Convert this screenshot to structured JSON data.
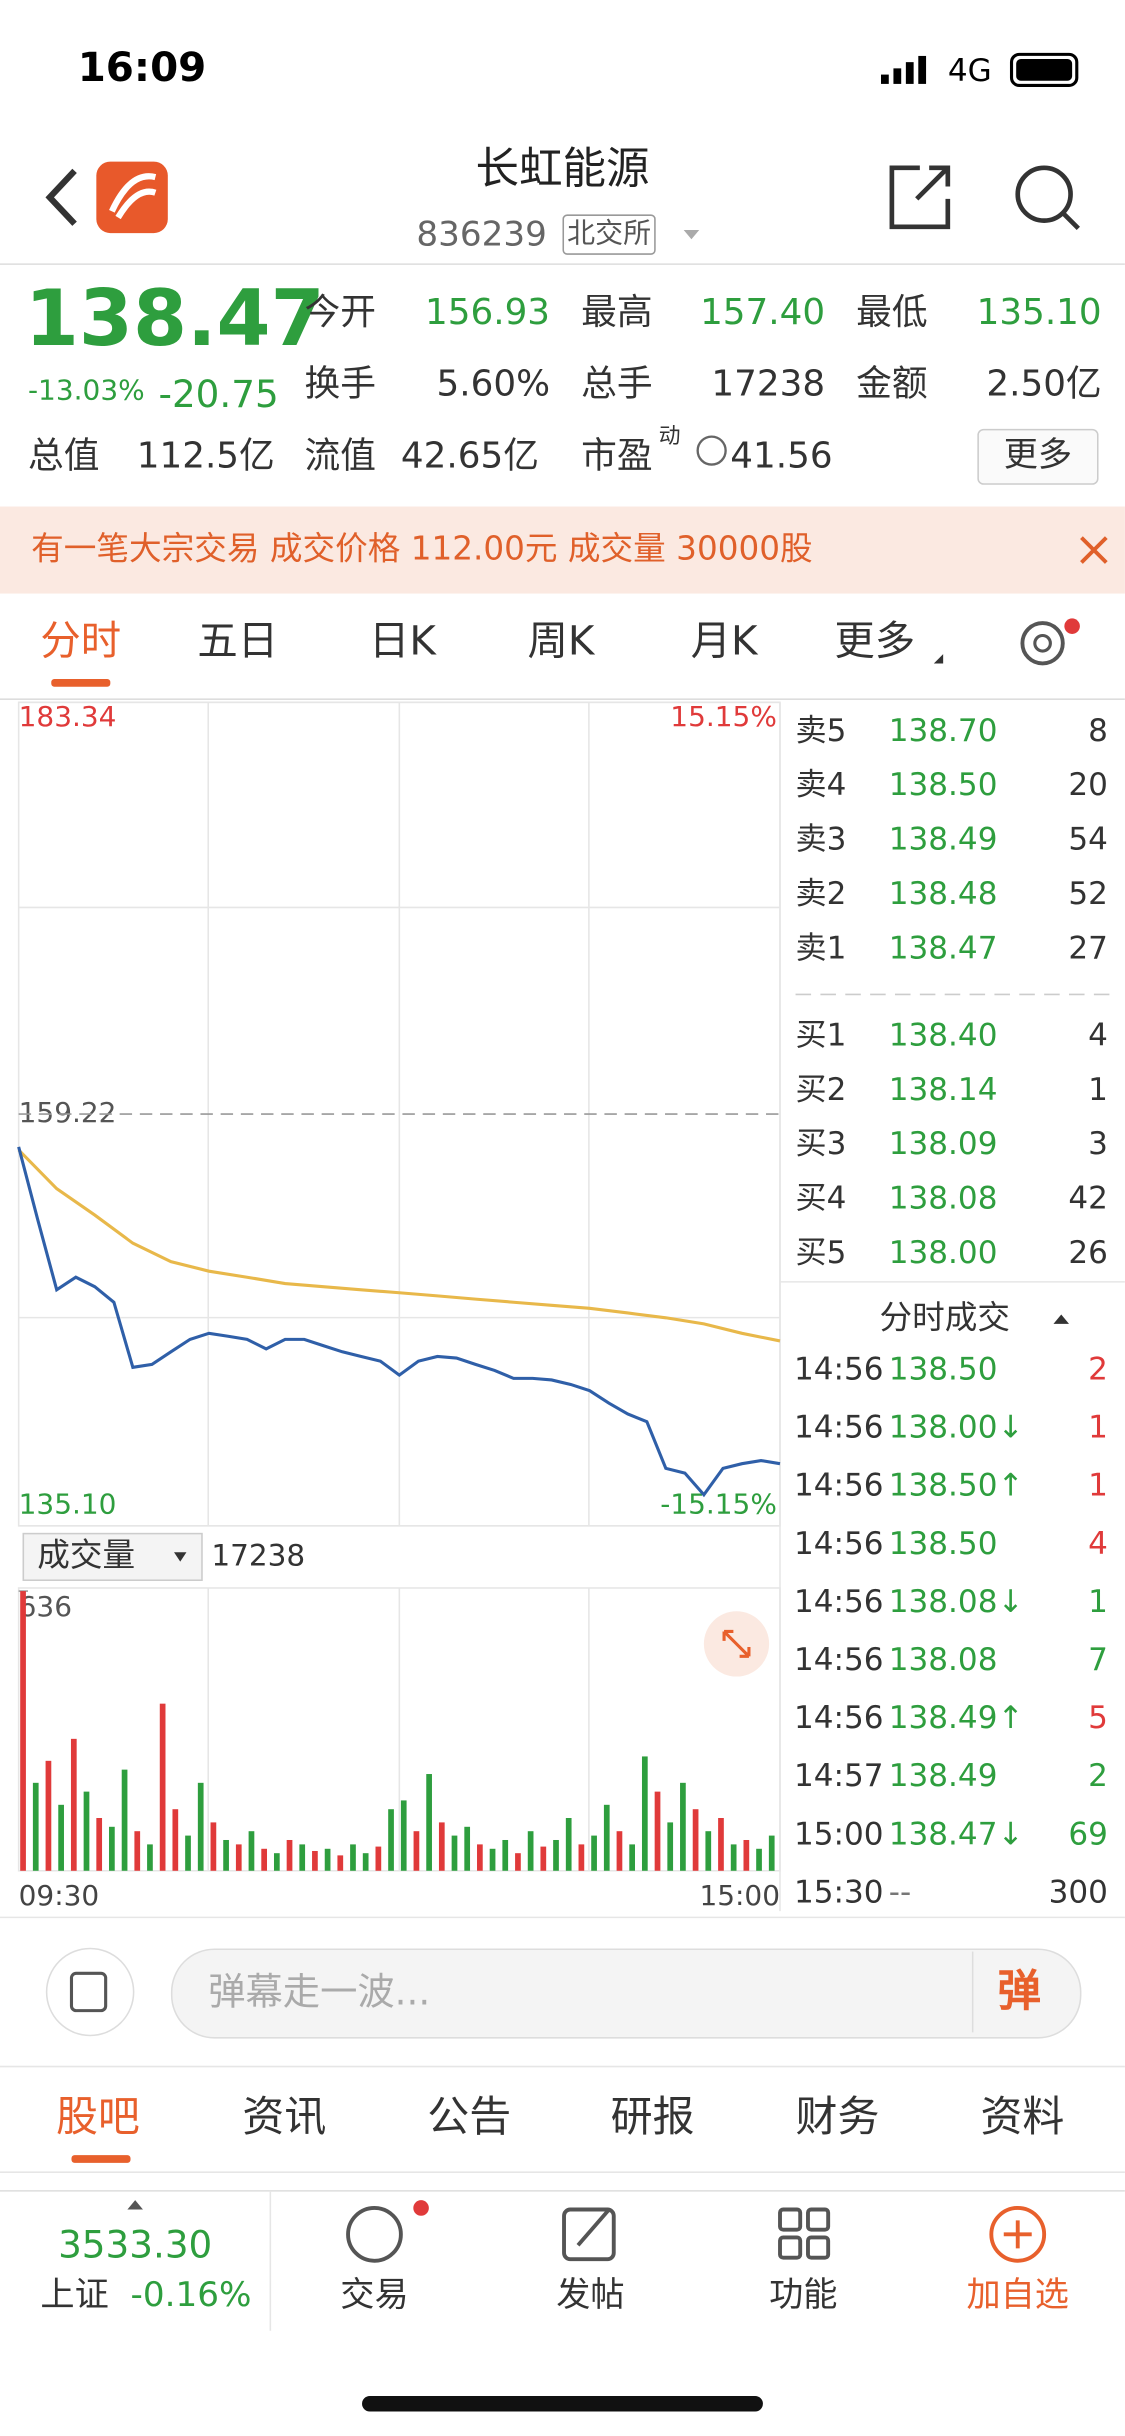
{
  "status": {
    "time": "16:09",
    "network": "4G"
  },
  "header": {
    "name": "长虹能源",
    "code": "836239",
    "exchange": "北交所"
  },
  "quote": {
    "price": "138.47",
    "change_pct": "-13.03%",
    "change": "-20.75",
    "stats": [
      {
        "label": "今开",
        "value": "156.93"
      },
      {
        "label": "最高",
        "value": "157.40"
      },
      {
        "label": "最低",
        "value": "135.10"
      },
      {
        "label": "换手",
        "value": "5.60%"
      },
      {
        "label": "总手",
        "value": "17238"
      },
      {
        "label": "金额",
        "value": "2.50亿"
      }
    ],
    "total_value": {
      "label": "总值",
      "value": "112.5亿"
    },
    "float_value": {
      "label": "流值",
      "value": "42.65亿"
    },
    "pe": {
      "label": "市盈",
      "tag": "动",
      "value": "41.56"
    },
    "more": "更多"
  },
  "banner": "有一笔大宗交易 成交价格 112.00元 成交量 30000股",
  "tabs": [
    "分时",
    "五日",
    "日K",
    "周K",
    "月K",
    "更多"
  ],
  "intraday": {
    "ylim": [
      135.1,
      183.34
    ],
    "yticks": [
      183.34,
      159.22,
      {
        "value": 135.1,
        "label": "135.10"
      }
    ],
    "pct_labels": [
      "15.15%",
      "-15.15%"
    ],
    "xticks": [
      "09:30",
      "15:00"
    ],
    "price": {
      "color": "#2f5fa8",
      "values": [
        157.3,
        153.03,
        148.93,
        149.66,
        149.11,
        148.2,
        144.38,
        144.56,
        145.29,
        146.02,
        146.38,
        146.2,
        146.02,
        145.47,
        146.02,
        146.02,
        145.66,
        145.29,
        145.02,
        144.75,
        143.93,
        144.75,
        145.02,
        144.93,
        144.56,
        144.2,
        143.74,
        143.74,
        143.65,
        143.38,
        143.02,
        142.29,
        141.65,
        141.2,
        138.47,
        138.19,
        136.92,
        138.47,
        138.74,
        138.92,
        138.74
      ]
    },
    "average": {
      "color": "#e8b84a",
      "values": [
        157.12,
        154.85,
        153.3,
        151.66,
        150.57,
        150.02,
        149.66,
        149.29,
        149.11,
        148.93,
        148.75,
        148.57,
        148.38,
        148.2,
        148.02,
        147.84,
        147.57,
        147.29,
        146.93,
        146.38,
        145.93
      ]
    },
    "volume": {
      "selector": "成交量",
      "total": "17238",
      "ylim": [
        0,
        636
      ],
      "yticks": [
        636
      ],
      "up_color": "#e03a3a",
      "down_color": "#2e9e3e",
      "values": [
        636,
        200,
        250,
        150,
        300,
        180,
        120,
        100,
        230,
        90,
        60,
        380,
        140,
        80,
        200,
        110,
        70,
        60,
        90,
        50,
        40,
        70,
        60,
        45,
        50,
        35,
        60,
        40,
        55,
        140,
        160,
        90,
        220,
        110,
        80,
        100,
        60,
        50,
        70,
        40,
        90,
        55,
        70,
        120,
        60,
        80,
        150,
        90,
        60,
        260,
        180,
        110,
        200,
        140,
        90,
        120,
        60,
        70,
        50,
        80
      ],
      "up": [
        true,
        false,
        true,
        false,
        true,
        false,
        true,
        false,
        false,
        true,
        false,
        true,
        true,
        false,
        false,
        true,
        false,
        true,
        false,
        true,
        false,
        true,
        false,
        true,
        false,
        true,
        false,
        false,
        true,
        false,
        false,
        true,
        false,
        true,
        false,
        false,
        true,
        false,
        false,
        true,
        false,
        true,
        false,
        false,
        true,
        false,
        false,
        true,
        false,
        false,
        true,
        false,
        false,
        true,
        false,
        true,
        false,
        true,
        false,
        false
      ]
    }
  },
  "order_book": {
    "sell": [
      {
        "label": "卖5",
        "price": "138.70",
        "volume": "8"
      },
      {
        "label": "卖4",
        "price": "138.50",
        "volume": "20"
      },
      {
        "label": "卖3",
        "price": "138.49",
        "volume": "54"
      },
      {
        "label": "卖2",
        "price": "138.48",
        "volume": "52"
      },
      {
        "label": "卖1",
        "price": "138.47",
        "volume": "27"
      }
    ],
    "buy": [
      {
        "label": "买1",
        "price": "138.40",
        "volume": "4"
      },
      {
        "label": "买2",
        "price": "138.14",
        "volume": "1"
      },
      {
        "label": "买3",
        "price": "138.09",
        "volume": "3"
      },
      {
        "label": "买4",
        "price": "138.08",
        "volume": "42"
      },
      {
        "label": "买5",
        "price": "138.00",
        "volume": "26"
      }
    ]
  },
  "trades": {
    "title": "分时成交",
    "rows": [
      {
        "time": "14:56",
        "price": "138.50",
        "volume": "2",
        "color": "#e03a3a"
      },
      {
        "time": "14:56",
        "price": "138.00↓",
        "volume": "1",
        "color": "#e03a3a"
      },
      {
        "time": "14:56",
        "price": "138.50↑",
        "volume": "1",
        "color": "#e03a3a"
      },
      {
        "time": "14:56",
        "price": "138.50",
        "volume": "4",
        "color": "#e03a3a"
      },
      {
        "time": "14:56",
        "price": "138.08↓",
        "volume": "1",
        "color": "#2e9e3e"
      },
      {
        "time": "14:56",
        "price": "138.08",
        "volume": "7",
        "color": "#2e9e3e"
      },
      {
        "time": "14:56",
        "price": "138.49↑",
        "volume": "5",
        "color": "#e03a3a"
      },
      {
        "time": "14:57",
        "price": "138.49",
        "volume": "2",
        "color": "#2e9e3e"
      },
      {
        "time": "15:00",
        "price": "138.47↓",
        "volume": "69",
        "color": "#2e9e3e"
      },
      {
        "time": "15:30",
        "price": "--",
        "volume": "300",
        "color": "#333333"
      }
    ]
  },
  "comment": {
    "placeholder": "弹幕走一波...",
    "button": "弹"
  },
  "section_tabs": [
    "股吧",
    "资讯",
    "公告",
    "研报",
    "财务",
    "资料"
  ],
  "bottom_nav": {
    "index_value": "3533.30",
    "index_name": "上证",
    "index_change": "-0.16%",
    "items": [
      "交易",
      "发帖",
      "功能",
      "加自选"
    ]
  }
}
